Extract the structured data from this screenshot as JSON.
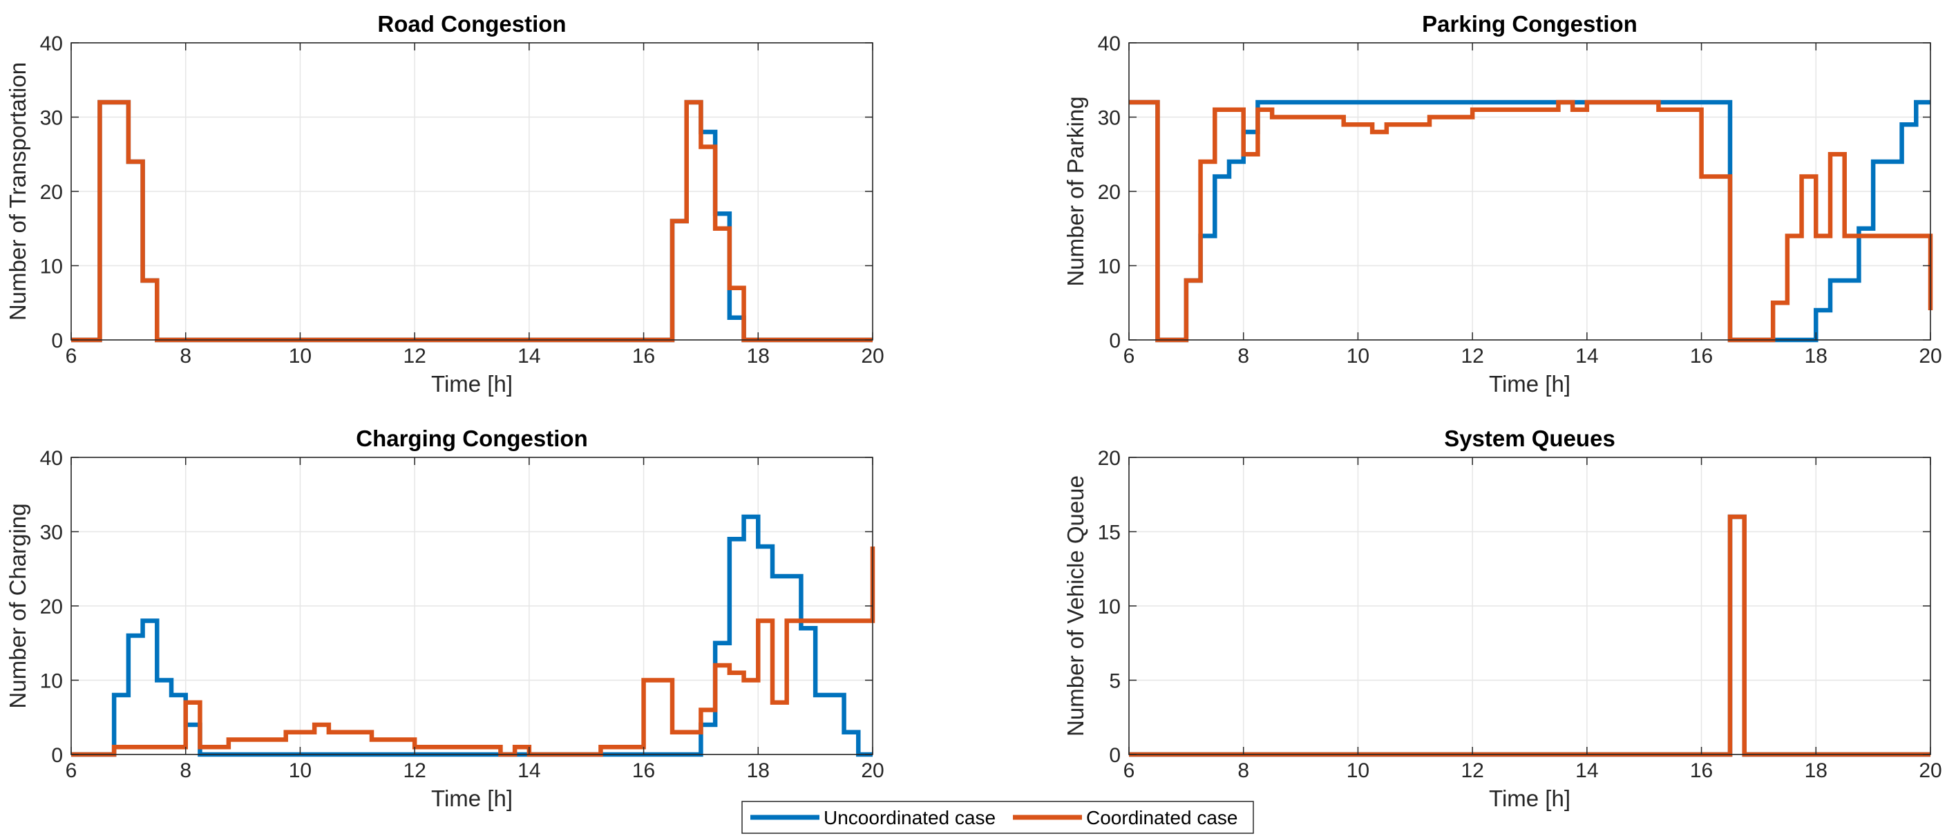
{
  "chart_data": [
    {
      "type": "line",
      "step": true,
      "title": "Road Congestion",
      "xlabel": "Time [h]",
      "ylabel": "Number of Transportation",
      "xlim": [
        6,
        20
      ],
      "ylim": [
        0,
        40
      ],
      "xticks": [
        "6",
        "8",
        "10",
        "12",
        "14",
        "16",
        "18",
        "20"
      ],
      "yticks": [
        "0",
        "10",
        "20",
        "30",
        "40"
      ],
      "grid": true,
      "series": [
        {
          "name": "Uncoordinated case",
          "color": "#0072BD",
          "x": [
            6,
            6.5,
            6.5,
            7.0,
            7.0,
            7.25,
            7.25,
            7.5,
            7.5,
            16.5,
            16.5,
            16.75,
            16.75,
            17.0,
            17.0,
            17.25,
            17.25,
            17.5,
            17.5,
            17.75,
            17.75,
            20
          ],
          "y": [
            0,
            0,
            32,
            32,
            24,
            24,
            8,
            8,
            0,
            0,
            16,
            16,
            32,
            32,
            28,
            28,
            17,
            17,
            3,
            3,
            0,
            0
          ]
        },
        {
          "name": "Coordinated case",
          "color": "#D95319",
          "x": [
            6,
            6.5,
            6.5,
            7.0,
            7.0,
            7.25,
            7.25,
            7.5,
            7.5,
            16.5,
            16.5,
            16.75,
            16.75,
            17.0,
            17.0,
            17.25,
            17.25,
            17.5,
            17.5,
            17.75,
            17.75,
            20
          ],
          "y": [
            0,
            0,
            32,
            32,
            24,
            24,
            8,
            8,
            0,
            0,
            16,
            16,
            32,
            32,
            26,
            26,
            15,
            15,
            7,
            7,
            0,
            0
          ]
        }
      ]
    },
    {
      "type": "line",
      "step": true,
      "title": "Parking Congestion",
      "xlabel": "Time [h]",
      "ylabel": "Number of Parking",
      "xlim": [
        6,
        20
      ],
      "ylim": [
        0,
        40
      ],
      "xticks": [
        "6",
        "8",
        "10",
        "12",
        "14",
        "16",
        "18",
        "20"
      ],
      "yticks": [
        "0",
        "10",
        "20",
        "30",
        "40"
      ],
      "grid": true,
      "series": [
        {
          "name": "Uncoordinated case",
          "color": "#0072BD",
          "x": [
            6,
            6.5,
            6.5,
            7.0,
            7.0,
            7.25,
            7.25,
            7.5,
            7.5,
            7.75,
            7.75,
            8.0,
            8.0,
            8.25,
            8.25,
            16.5,
            16.5,
            18.0,
            18.0,
            18.25,
            18.25,
            18.5,
            18.5,
            18.75,
            18.75,
            19.0,
            19.0,
            19.5,
            19.5,
            19.75,
            19.75,
            20
          ],
          "y": [
            32,
            32,
            0,
            0,
            8,
            8,
            14,
            14,
            22,
            22,
            24,
            24,
            28,
            28,
            32,
            32,
            0,
            0,
            4,
            4,
            8,
            8,
            8,
            8,
            15,
            15,
            24,
            24,
            29,
            29,
            32,
            32
          ]
        },
        {
          "name": "Coordinated case",
          "color": "#D95319",
          "x": [
            6,
            6.5,
            6.5,
            7.0,
            7.0,
            7.25,
            7.25,
            7.5,
            7.5,
            8.0,
            8.0,
            8.25,
            8.25,
            8.5,
            8.5,
            9.75,
            9.75,
            10.25,
            10.25,
            10.5,
            10.5,
            11.25,
            11.25,
            12.0,
            12.0,
            13.5,
            13.5,
            13.75,
            13.75,
            14.0,
            14.0,
            15.25,
            15.25,
            16.0,
            16.0,
            16.5,
            16.5,
            17.25,
            17.25,
            17.5,
            17.5,
            17.75,
            17.75,
            18.0,
            18.0,
            18.25,
            18.25,
            18.5,
            18.5,
            18.75,
            18.75,
            20.0,
            20.0
          ],
          "y": [
            32,
            32,
            0,
            0,
            8,
            8,
            24,
            24,
            31,
            31,
            25,
            25,
            31,
            31,
            30,
            30,
            29,
            29,
            28,
            28,
            29,
            29,
            30,
            30,
            31,
            31,
            32,
            32,
            31,
            31,
            32,
            32,
            31,
            31,
            22,
            22,
            0,
            0,
            5,
            5,
            14,
            14,
            22,
            22,
            14,
            14,
            25,
            25,
            14,
            14,
            14,
            14,
            4
          ]
        }
      ]
    },
    {
      "type": "line",
      "step": true,
      "title": "Charging Congestion",
      "xlabel": "Time [h]",
      "ylabel": "Number of Charging",
      "xlim": [
        6,
        20
      ],
      "ylim": [
        0,
        40
      ],
      "xticks": [
        "6",
        "8",
        "10",
        "12",
        "14",
        "16",
        "18",
        "20"
      ],
      "yticks": [
        "0",
        "10",
        "20",
        "30",
        "40"
      ],
      "grid": true,
      "series": [
        {
          "name": "Uncoordinated case",
          "color": "#0072BD",
          "x": [
            6,
            6.75,
            6.75,
            7.0,
            7.0,
            7.25,
            7.25,
            7.5,
            7.5,
            7.75,
            7.75,
            8.0,
            8.0,
            8.25,
            8.25,
            17.0,
            17.0,
            17.25,
            17.25,
            17.5,
            17.5,
            17.75,
            17.75,
            18.0,
            18.0,
            18.25,
            18.25,
            18.75,
            18.75,
            19.0,
            19.0,
            19.5,
            19.5,
            19.75,
            19.75,
            20
          ],
          "y": [
            0,
            0,
            8,
            8,
            16,
            16,
            18,
            18,
            10,
            10,
            8,
            8,
            4,
            4,
            0,
            0,
            4,
            4,
            15,
            15,
            29,
            29,
            32,
            32,
            28,
            28,
            24,
            24,
            17,
            17,
            8,
            8,
            3,
            3,
            0,
            0
          ]
        },
        {
          "name": "Coordinated case",
          "color": "#D95319",
          "x": [
            6,
            6.75,
            6.75,
            8.0,
            8.0,
            8.25,
            8.25,
            8.75,
            8.75,
            9.75,
            9.75,
            10.25,
            10.25,
            10.5,
            10.5,
            11.25,
            11.25,
            12.0,
            12.0,
            13.5,
            13.5,
            13.75,
            13.75,
            14.0,
            14.0,
            15.25,
            15.25,
            16.0,
            16.0,
            16.5,
            16.5,
            17.0,
            17.0,
            17.25,
            17.25,
            17.5,
            17.5,
            17.75,
            17.75,
            18.0,
            18.0,
            18.25,
            18.25,
            18.5,
            18.5,
            18.75,
            18.75,
            20.0,
            20.0
          ],
          "y": [
            0,
            0,
            1,
            1,
            7,
            7,
            1,
            1,
            2,
            2,
            3,
            3,
            4,
            4,
            3,
            3,
            2,
            2,
            1,
            1,
            0,
            0,
            1,
            1,
            0,
            0,
            1,
            1,
            10,
            10,
            3,
            3,
            6,
            6,
            12,
            12,
            11,
            11,
            10,
            10,
            18,
            18,
            7,
            7,
            18,
            18,
            18,
            18,
            28
          ]
        }
      ]
    },
    {
      "type": "line",
      "step": true,
      "title": "System Queues",
      "xlabel": "Time [h]",
      "ylabel": "Number of Vehicle Queue",
      "xlim": [
        6,
        20
      ],
      "ylim": [
        0,
        20
      ],
      "xticks": [
        "6",
        "8",
        "10",
        "12",
        "14",
        "16",
        "18",
        "20"
      ],
      "yticks": [
        "0",
        "5",
        "10",
        "15",
        "20"
      ],
      "grid": true,
      "series": [
        {
          "name": "Uncoordinated case",
          "color": "#0072BD",
          "x": [
            6,
            16.5,
            16.5,
            16.75,
            16.75,
            20
          ],
          "y": [
            0,
            0,
            16,
            16,
            0,
            0
          ]
        },
        {
          "name": "Coordinated case",
          "color": "#D95319",
          "x": [
            6,
            16.5,
            16.5,
            16.75,
            16.75,
            20
          ],
          "y": [
            0,
            0,
            16,
            16,
            0,
            0
          ]
        }
      ]
    }
  ],
  "legend": {
    "entries": [
      {
        "label": "Uncoordinated case",
        "color": "#0072BD"
      },
      {
        "label": "Coordinated case",
        "color": "#D95319"
      }
    ],
    "placement": "bottom-center"
  }
}
